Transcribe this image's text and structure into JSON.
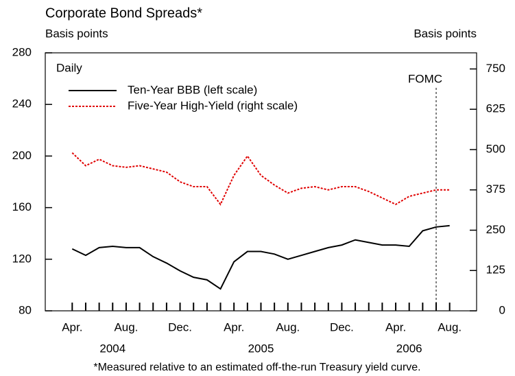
{
  "chart_data": {
    "type": "line",
    "title": "Corporate Bond Spreads*",
    "y_label": "Basis points",
    "y2_label": "Basis points",
    "frequency_label": "Daily",
    "note": "*Measured relative to an estimated off-the-run Treasury yield curve.",
    "x": [
      "2004-04",
      "2004-05",
      "2004-06",
      "2004-07",
      "2004-08",
      "2004-09",
      "2004-10",
      "2004-11",
      "2004-12",
      "2005-01",
      "2005-02",
      "2005-03",
      "2005-04",
      "2005-05",
      "2005-06",
      "2005-07",
      "2005-08",
      "2005-09",
      "2005-10",
      "2005-11",
      "2005-12",
      "2006-01",
      "2006-02",
      "2006-03",
      "2006-04",
      "2006-05",
      "2006-06",
      "2006-07",
      "2006-08"
    ],
    "xlim": [
      "2004-02",
      "2006-10"
    ],
    "xticks": [
      "2004-04",
      "2004-05",
      "2004-06",
      "2004-07",
      "2004-08",
      "2004-09",
      "2004-10",
      "2004-11",
      "2004-12",
      "2005-01",
      "2005-02",
      "2005-03",
      "2005-04",
      "2005-05",
      "2005-06",
      "2005-07",
      "2005-08",
      "2005-09",
      "2005-10",
      "2005-11",
      "2005-12",
      "2006-01",
      "2006-02",
      "2006-03",
      "2006-04",
      "2006-05",
      "2006-06",
      "2006-07",
      "2006-08"
    ],
    "xtick_labels": [
      {
        "value": "2004-04",
        "label": "Apr."
      },
      {
        "value": "2004-08",
        "label": "Aug."
      },
      {
        "value": "2004-12",
        "label": "Dec."
      },
      {
        "value": "2005-04",
        "label": "Apr."
      },
      {
        "value": "2005-08",
        "label": "Aug."
      },
      {
        "value": "2005-12",
        "label": "Dec."
      },
      {
        "value": "2006-04",
        "label": "Apr."
      },
      {
        "value": "2006-08",
        "label": "Aug."
      }
    ],
    "year_labels": [
      {
        "value": "2004-07",
        "label": "2004"
      },
      {
        "value": "2005-06",
        "label": "2005"
      },
      {
        "value": "2006-05",
        "label": "2006"
      }
    ],
    "ylim": [
      80,
      280
    ],
    "yticks": [
      80,
      120,
      160,
      200,
      240,
      280
    ],
    "y2lim": [
      0,
      800
    ],
    "y2ticks": [
      0,
      125,
      250,
      375,
      500,
      625,
      750
    ],
    "annotations": [
      {
        "text": "FOMC",
        "x": "2006-07"
      }
    ],
    "series": [
      {
        "name": "Ten-Year BBB (left scale)",
        "color": "#000000",
        "style": "solid",
        "values": [
          128,
          123,
          129,
          130,
          129,
          129,
          122,
          117,
          111,
          106,
          104,
          97,
          118,
          126,
          126,
          124,
          120,
          123,
          126,
          129,
          131,
          135,
          133,
          131,
          131,
          130,
          142,
          145,
          146
        ]
      },
      {
        "name": "Five-Year High-Yield (right scale)",
        "color": "#e00000",
        "style": "dashed",
        "axis": "y2",
        "values": [
          490,
          450,
          470,
          450,
          445,
          450,
          440,
          430,
          400,
          385,
          385,
          330,
          420,
          480,
          420,
          390,
          365,
          380,
          385,
          375,
          385,
          385,
          370,
          350,
          330,
          355,
          365,
          375,
          375
        ]
      }
    ]
  }
}
